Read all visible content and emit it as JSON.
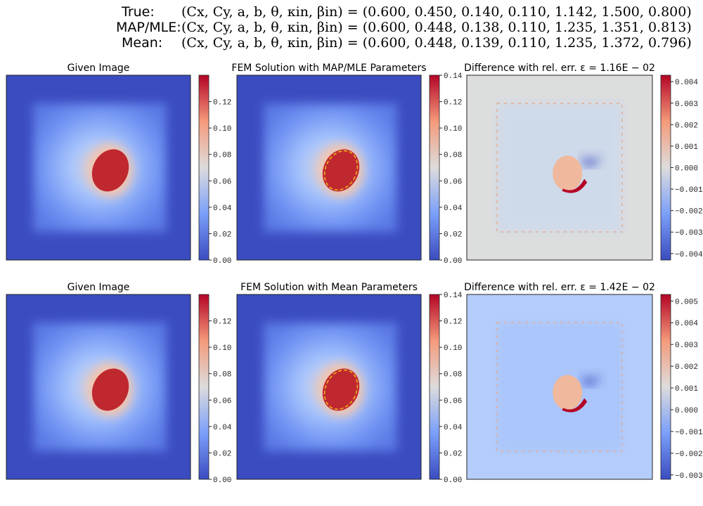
{
  "header": {
    "rows": [
      {
        "label": "True:",
        "equation": "(Cx, Cy, a, b, θ, κin, βin) = (0.600, 0.450, 0.140, 0.110, 1.142, 1.500, 0.800)"
      },
      {
        "label": "MAP/MLE:",
        "equation": "(Cx, Cy, a, b, θ, κin, βin) = (0.600, 0.448, 0.138, 0.110, 1.235, 1.351, 0.813)"
      },
      {
        "label": "Mean:",
        "equation": "(Cx, Cy, a, b, θ, κin, βin) = (0.600, 0.448, 0.139, 0.110, 1.235, 1.372, 0.796)"
      }
    ]
  },
  "chart_data": [
    {
      "type": "heatmap",
      "title": "Given Image",
      "colormap": "coolwarm",
      "cbar_range": [
        0.0,
        0.14
      ],
      "cbar_ticks": [
        "0.00",
        "0.02",
        "0.04",
        "0.06",
        "0.08",
        "0.10",
        "0.12"
      ],
      "overlay_ellipse": false
    },
    {
      "type": "heatmap",
      "title": "FEM Solution with MAP/MLE Parameters",
      "colormap": "coolwarm",
      "cbar_range": [
        0.0,
        0.14
      ],
      "cbar_ticks": [
        "0.00",
        "0.02",
        "0.04",
        "0.06",
        "0.08",
        "0.10",
        "0.12",
        "0.14"
      ],
      "overlay_ellipse": true
    },
    {
      "type": "heatmap",
      "title": "Difference with rel. err. ε = 1.16E − 02",
      "colormap": "coolwarm",
      "cbar_range": [
        -0.0043,
        0.0043
      ],
      "cbar_ticks": [
        "−0.004",
        "−0.003",
        "−0.002",
        "−0.001",
        "0.000",
        "0.001",
        "0.002",
        "0.003",
        "0.004"
      ],
      "overlay_ellipse": false
    },
    {
      "type": "heatmap",
      "title": "Given Image",
      "colormap": "coolwarm",
      "cbar_range": [
        0.0,
        0.14
      ],
      "cbar_ticks": [
        "0.00",
        "0.02",
        "0.04",
        "0.06",
        "0.08",
        "0.10",
        "0.12"
      ],
      "overlay_ellipse": false
    },
    {
      "type": "heatmap",
      "title": "FEM Solution with Mean Parameters",
      "colormap": "coolwarm",
      "cbar_range": [
        0.0,
        0.14
      ],
      "cbar_ticks": [
        "0.00",
        "0.02",
        "0.04",
        "0.06",
        "0.08",
        "0.10",
        "0.12",
        "0.14"
      ],
      "overlay_ellipse": true
    },
    {
      "type": "heatmap",
      "title": "Difference with rel. err. ε = 1.42E − 02",
      "colormap": "coolwarm",
      "cbar_range": [
        -0.0032,
        0.0053
      ],
      "cbar_ticks": [
        "−0.003",
        "−0.002",
        "−0.001",
        "0.000",
        "0.001",
        "0.002",
        "0.003",
        "0.004",
        "0.005"
      ],
      "overlay_ellipse": false
    }
  ]
}
